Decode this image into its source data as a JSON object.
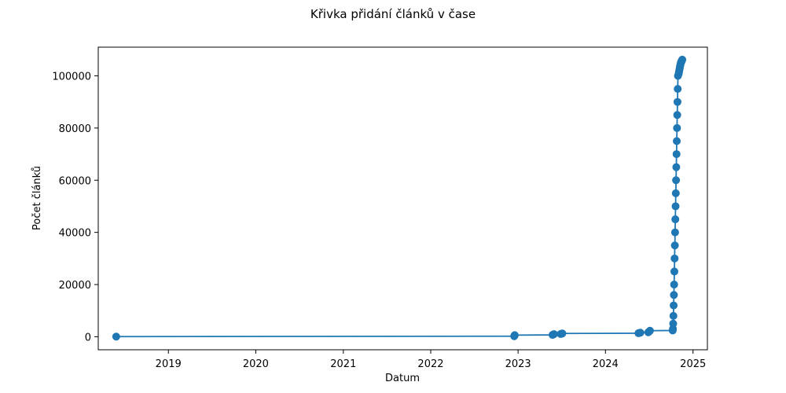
{
  "chart_data": {
    "type": "line",
    "title": "Křivka přidání článků v čase",
    "xlabel": "Datum",
    "ylabel": "Počet článků",
    "x_axis_type": "date",
    "xlim": [
      "2018-03-14",
      "2025-03-02"
    ],
    "ylim": [
      -5000,
      111000
    ],
    "xticks": [
      {
        "date": "2019-01-01",
        "label": "2019"
      },
      {
        "date": "2020-01-01",
        "label": "2020"
      },
      {
        "date": "2021-01-01",
        "label": "2021"
      },
      {
        "date": "2022-01-01",
        "label": "2022"
      },
      {
        "date": "2023-01-01",
        "label": "2023"
      },
      {
        "date": "2024-01-01",
        "label": "2024"
      },
      {
        "date": "2025-01-01",
        "label": "2025"
      }
    ],
    "yticks": [
      0,
      20000,
      40000,
      60000,
      80000,
      100000
    ],
    "ytick_labels": [
      "0",
      "20000",
      "40000",
      "60000",
      "80000",
      "100000"
    ],
    "grid": false,
    "series": [
      {
        "color": "#1f77b4",
        "marker": "circle",
        "x": [
          "2018-05-28",
          "2022-12-16",
          "2022-12-17",
          "2022-12-18",
          "2023-05-25",
          "2023-05-28",
          "2023-05-31",
          "2023-06-28",
          "2023-07-02",
          "2023-07-05",
          "2024-05-18",
          "2024-05-22",
          "2024-05-26",
          "2024-06-28",
          "2024-07-02",
          "2024-07-05",
          "2024-10-08",
          "2024-10-09",
          "2024-10-10",
          "2024-10-11",
          "2024-10-12",
          "2024-10-13",
          "2024-10-14",
          "2024-10-15",
          "2024-10-16",
          "2024-10-17",
          "2024-10-18",
          "2024-10-19",
          "2024-10-20",
          "2024-10-21",
          "2024-10-22",
          "2024-10-23",
          "2024-10-24",
          "2024-10-25",
          "2024-10-26",
          "2024-10-27",
          "2024-10-28",
          "2024-10-29",
          "2024-10-30",
          "2024-11-02",
          "2024-11-03",
          "2024-11-04",
          "2024-11-05",
          "2024-11-06",
          "2024-11-07",
          "2024-11-08",
          "2024-11-09",
          "2024-11-10",
          "2024-11-11",
          "2024-11-12",
          "2024-11-13",
          "2024-11-14",
          "2024-11-15",
          "2024-11-16",
          "2024-11-17"
        ],
        "y": [
          50,
          200,
          400,
          600,
          700,
          850,
          1000,
          1050,
          1150,
          1250,
          1350,
          1450,
          1550,
          1700,
          2000,
          2300,
          2400,
          3000,
          5000,
          8000,
          12000,
          16000,
          20000,
          25000,
          30000,
          35000,
          40000,
          45000,
          50000,
          55000,
          60000,
          65000,
          70000,
          75000,
          80000,
          85000,
          90000,
          95000,
          100000,
          100800,
          101300,
          101800,
          102300,
          102800,
          103300,
          103800,
          104200,
          104600,
          105000,
          105200,
          105400,
          105600,
          105800,
          106000,
          106200
        ]
      }
    ]
  }
}
